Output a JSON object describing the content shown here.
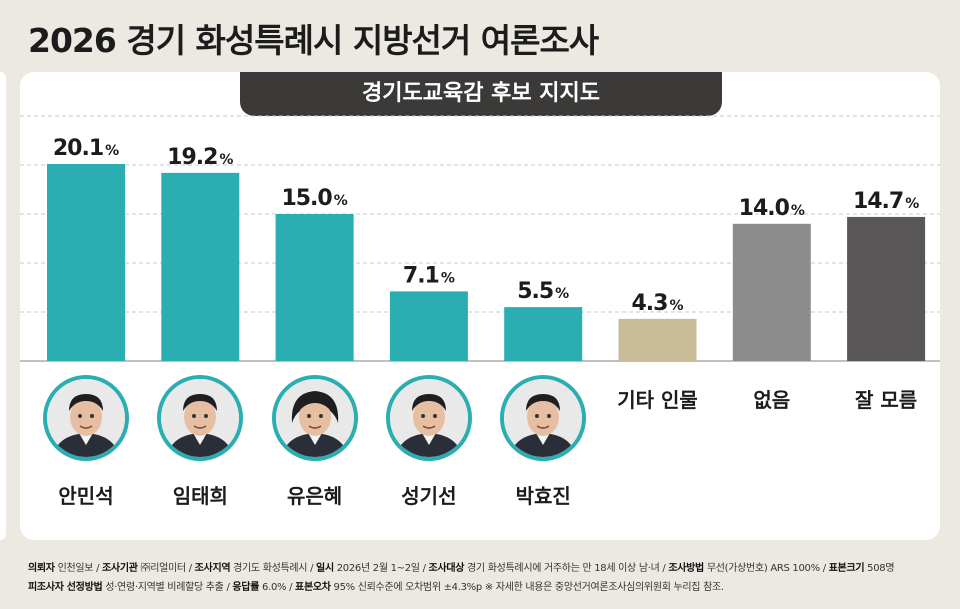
{
  "title": "2026 경기 화성특례시 지방선거 여론조사",
  "subtitle": "경기도교육감 후보 지지도",
  "colors": {
    "teal": "#2aaeb1",
    "beige": "#c8bc98",
    "gray": "#8c8c8c",
    "dark": "#585656",
    "tab": "#3b3a38"
  },
  "chart_data": {
    "type": "bar",
    "categories": [
      "안민석",
      "임태희",
      "유은혜",
      "성기선",
      "박효진",
      "기타 인물",
      "없음",
      "잘 모름"
    ],
    "values": [
      20.1,
      19.2,
      15.0,
      7.1,
      5.5,
      4.3,
      14.0,
      14.7
    ],
    "value_labels": [
      "20.1",
      "19.2",
      "15.0",
      "7.1",
      "5.5",
      "4.3",
      "14.0",
      "14.7"
    ],
    "unit": "%",
    "title": "경기도교육감 후보 지지도",
    "ylim": [
      0,
      25
    ],
    "grid": true,
    "bar_colors": [
      "teal",
      "teal",
      "teal",
      "teal",
      "teal",
      "beige",
      "gray",
      "dark"
    ]
  },
  "candidates_with_photo": [
    "안민석",
    "임태희",
    "유은혜",
    "성기선",
    "박효진"
  ],
  "footer": {
    "line1": [
      {
        "label": "의뢰자",
        "value": "인천일보"
      },
      {
        "label": "조사기관",
        "value": "㈜리얼미터"
      },
      {
        "label": "조사지역",
        "value": "경기도 화성특례시"
      },
      {
        "label": "일시",
        "value": "2026년 2월 1~2일"
      },
      {
        "label": "조사대상",
        "value": "경기 화성특례시에 거주하는 만 18세 이상 남·녀"
      },
      {
        "label": "조사방법",
        "value": "무선(가상번호) ARS 100%"
      },
      {
        "label": "표본크기",
        "value": "508명"
      }
    ],
    "line2": [
      {
        "label": "피조사자 선정방법",
        "value": "성·연령·지역별 비례할당 추출"
      },
      {
        "label": "응답률",
        "value": "6.0%"
      },
      {
        "label": "표본오차",
        "value": "95% 신뢰수준에 오차범위 ±4.3%p"
      }
    ],
    "note": "※ 자세한 내용은 중앙선거여론조사심의위원회 누리집 참조."
  }
}
